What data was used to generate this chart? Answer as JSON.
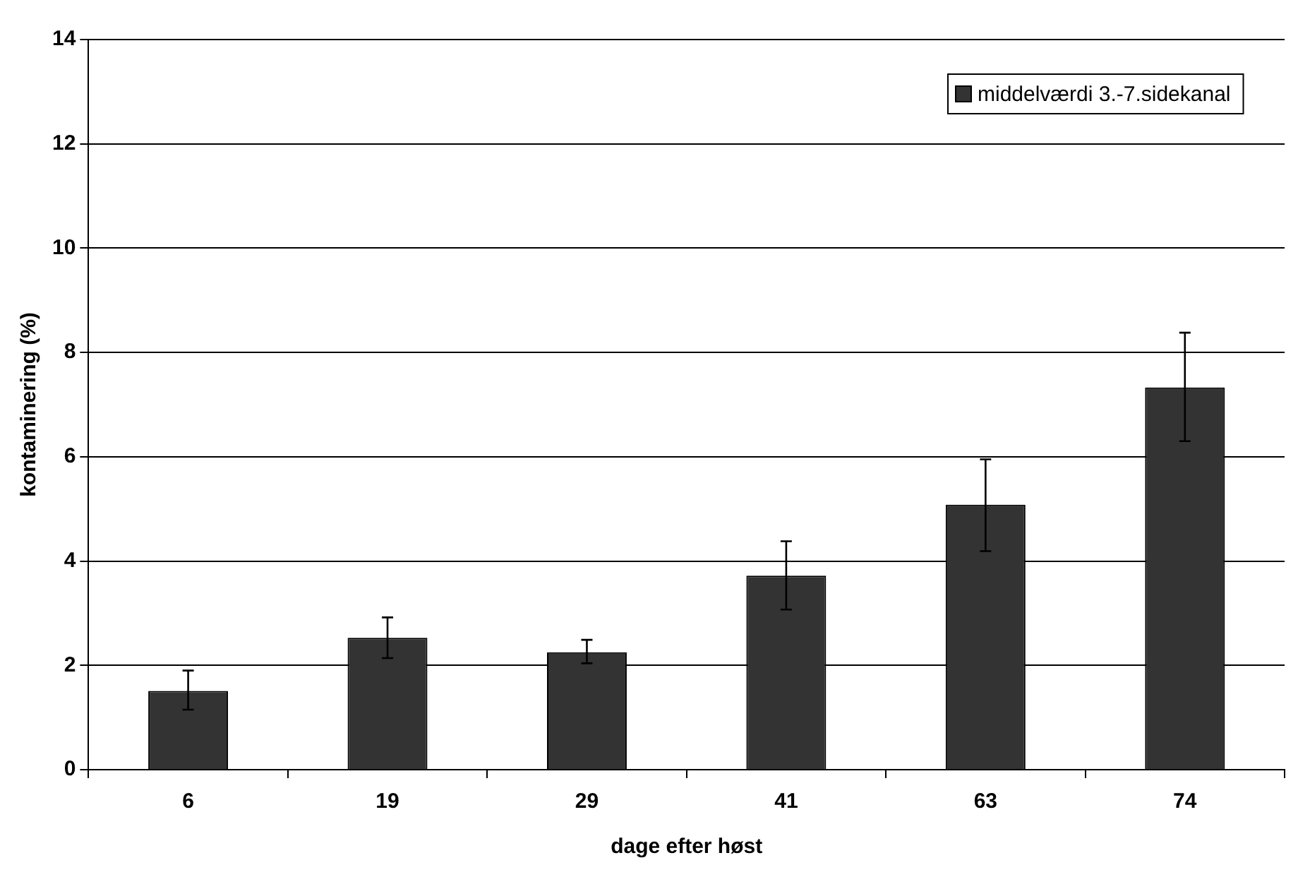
{
  "chart_data": {
    "type": "bar",
    "xlabel": "dage efter høst",
    "ylabel": "kontaminering (%)",
    "categories": [
      "6",
      "19",
      "29",
      "41",
      "63",
      "74"
    ],
    "series": [
      {
        "name": "middelværdi 3.-7.sidekanal",
        "color": "#333333",
        "values": [
          1.51,
          2.53,
          2.25,
          3.72,
          5.08,
          7.33
        ],
        "errors": [
          [
            1.15,
            1.9
          ],
          [
            2.14,
            2.92
          ],
          [
            2.04,
            2.49
          ],
          [
            3.07,
            4.38
          ],
          [
            4.19,
            5.95
          ],
          [
            6.3,
            8.38
          ]
        ]
      }
    ],
    "ylim": [
      0,
      14
    ],
    "yticks": [
      0,
      2,
      4,
      6,
      8,
      10,
      12,
      14
    ],
    "grid": "y",
    "legend": "top right"
  }
}
